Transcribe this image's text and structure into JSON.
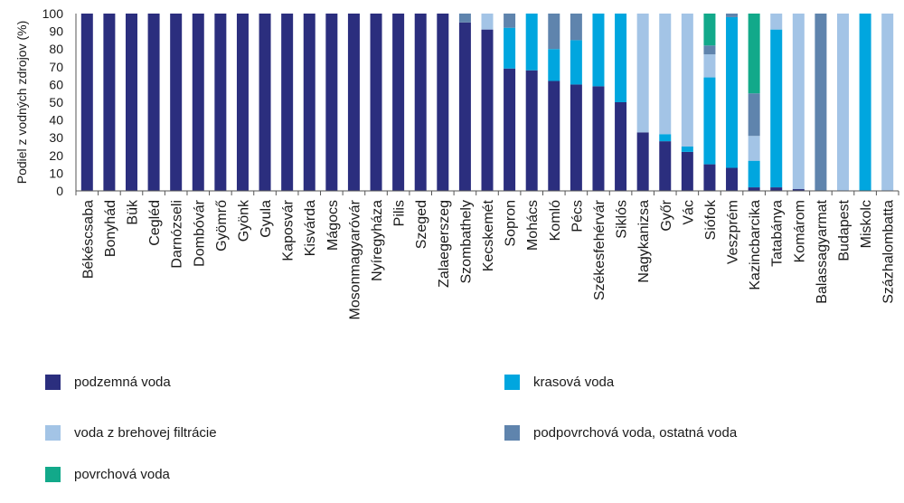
{
  "chart_data": {
    "type": "bar",
    "stacked": true,
    "ylabel": "Podiel z vodných zdrojov (%)",
    "ylim": [
      0,
      100
    ],
    "yticks": [
      0,
      10,
      20,
      30,
      40,
      50,
      60,
      70,
      80,
      90,
      100
    ],
    "grid": false,
    "legend_position": "bottom",
    "categories": [
      "Békéscsaba",
      "Bonyhád",
      "Bük",
      "Cegléd",
      "Darnózseli",
      "Dombóvár",
      "Gyömrő",
      "Gyönk",
      "Gyula",
      "Kaposvár",
      "Kisvárda",
      "Mágocs",
      "Mosonmagyaróvár",
      "Nyíregyháza",
      "Pilis",
      "Szeged",
      "Zalaegerszeg",
      "Szombathely",
      "Kecskemét",
      "Sopron",
      "Mohács",
      "Komló",
      "Pécs",
      "Székesfehérvár",
      "Siklós",
      "Nagykanizsa",
      "Győr",
      "Vác",
      "Siófok",
      "Veszprém",
      "Kazincbarcika",
      "Tatabánya",
      "Komárom",
      "Balassagyarmat",
      "Budapest",
      "Miskolc",
      "Százhalombatta"
    ],
    "series": [
      {
        "name": "podzemná voda",
        "color": "#2b2e7e",
        "values": [
          100,
          100,
          100,
          100,
          100,
          100,
          100,
          100,
          100,
          100,
          100,
          100,
          100,
          100,
          100,
          100,
          100,
          95,
          91,
          69,
          68,
          62,
          60,
          59,
          50,
          33,
          28,
          22,
          15,
          13,
          2,
          2,
          1,
          0,
          0,
          0,
          0
        ]
      },
      {
        "name": "krasová voda",
        "color": "#00a6df",
        "values": [
          0,
          0,
          0,
          0,
          0,
          0,
          0,
          0,
          0,
          0,
          0,
          0,
          0,
          0,
          0,
          0,
          0,
          0,
          0,
          23,
          32,
          18,
          25,
          41,
          50,
          0,
          4,
          3,
          49,
          85,
          15,
          89,
          0,
          0,
          0,
          100,
          0
        ]
      },
      {
        "name": "voda z brehovej filtrácie",
        "color": "#a3c4e6",
        "values": [
          0,
          0,
          0,
          0,
          0,
          0,
          0,
          0,
          0,
          0,
          0,
          0,
          0,
          0,
          0,
          0,
          0,
          0,
          9,
          0,
          0,
          0,
          0,
          0,
          0,
          67,
          68,
          75,
          13,
          0,
          14,
          9,
          99,
          0,
          100,
          0,
          100
        ]
      },
      {
        "name": "podpovrchová voda, ostatná voda",
        "color": "#5f84ad",
        "values": [
          0,
          0,
          0,
          0,
          0,
          0,
          0,
          0,
          0,
          0,
          0,
          0,
          0,
          0,
          0,
          0,
          0,
          5,
          0,
          8,
          0,
          20,
          15,
          0,
          0,
          0,
          0,
          0,
          5,
          2,
          24,
          0,
          0,
          100,
          0,
          0,
          0
        ]
      },
      {
        "name": "povrchová voda",
        "color": "#12a98a",
        "values": [
          0,
          0,
          0,
          0,
          0,
          0,
          0,
          0,
          0,
          0,
          0,
          0,
          0,
          0,
          0,
          0,
          0,
          0,
          0,
          0,
          0,
          0,
          0,
          0,
          0,
          0,
          0,
          0,
          18,
          0,
          45,
          0,
          0,
          0,
          0,
          0,
          0
        ]
      }
    ]
  },
  "legend": {
    "items": [
      {
        "label": "podzemná voda",
        "color": "#2b2e7e"
      },
      {
        "label": "krasová voda",
        "color": "#00a6df"
      },
      {
        "label": "voda z brehovej filtrácie",
        "color": "#a3c4e6"
      },
      {
        "label": "podpovrchová voda, ostatná voda",
        "color": "#5f84ad"
      },
      {
        "label": "povrchová voda",
        "color": "#12a98a"
      }
    ]
  }
}
